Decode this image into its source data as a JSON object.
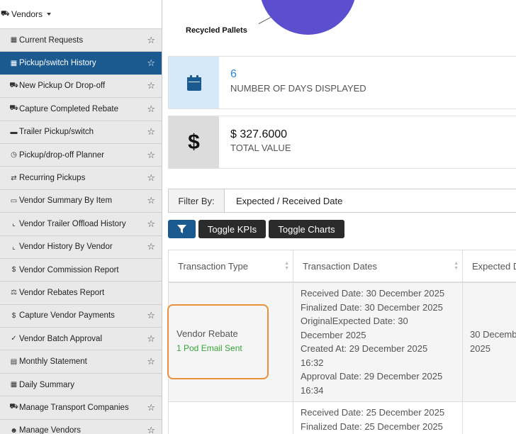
{
  "sidebar": {
    "top": {
      "icon": "truck-icon",
      "label": "Vendors"
    },
    "items": [
      {
        "label": "Current Requests",
        "icon": "table-icon",
        "glyph": "▦",
        "star": true
      },
      {
        "label": "Pickup/switch History",
        "icon": "table-icon",
        "glyph": "▦",
        "star": true,
        "active": true
      },
      {
        "label": "New Pickup Or Drop-off",
        "icon": "truck-loading-icon",
        "glyph": "⛟",
        "star": true
      },
      {
        "label": "Capture Completed Rebate",
        "icon": "dolly-icon",
        "glyph": "⛟",
        "star": true
      },
      {
        "label": "Trailer Pickup/switch",
        "icon": "trailer-icon",
        "glyph": "▬",
        "star": true
      },
      {
        "label": "Pickup/drop-off Planner",
        "icon": "clock-icon",
        "glyph": "◷",
        "star": true
      },
      {
        "label": "Recurring Pickups",
        "icon": "sync-icon",
        "glyph": "⇄",
        "star": true
      },
      {
        "label": "Vendor Summary By Item",
        "icon": "pallet-icon",
        "glyph": "▭",
        "star": true
      },
      {
        "label": "Vendor Trailer Offload History",
        "icon": "line-chart-icon",
        "glyph": "⌞",
        "star": true
      },
      {
        "label": "Vendor History By Vendor",
        "icon": "line-chart-icon",
        "glyph": "⌞",
        "star": true
      },
      {
        "label": "Vendor Commission Report",
        "icon": "dollar-icon",
        "glyph": "$",
        "star": false
      },
      {
        "label": "Vendor Rebates Report",
        "icon": "balance-scale-icon",
        "glyph": "⚖",
        "star": false
      },
      {
        "label": "Capture Vendor Payments",
        "icon": "dollar-icon",
        "glyph": "$",
        "star": true
      },
      {
        "label": "Vendor Batch Approval",
        "icon": "check-icon",
        "glyph": "✓",
        "star": true
      },
      {
        "label": "Monthly Statement",
        "icon": "list-alt-icon",
        "glyph": "▤",
        "star": true
      },
      {
        "label": "Daily Summary",
        "icon": "table-icon",
        "glyph": "▦",
        "star": false
      },
      {
        "label": "Manage Transport Companies",
        "icon": "truck-icon",
        "glyph": "⛟",
        "star": true
      },
      {
        "label": "Manage Vendors",
        "icon": "users-icon",
        "glyph": "☻",
        "star": true
      }
    ]
  },
  "pie": {
    "label": "Recycled Pallets",
    "color": "#5b4fcf"
  },
  "kpis": {
    "days": {
      "value": "6",
      "label": "NUMBER OF DAYS DISPLAYED",
      "icon": "calendar-icon"
    },
    "total": {
      "value": "$ 327.6000",
      "label": "TOTAL VALUE",
      "icon": "dollar-icon"
    }
  },
  "filter": {
    "label": "Filter By:",
    "value": "Expected / Received Date"
  },
  "buttons": {
    "filter_icon": "filter-icon",
    "toggle_kpis": "Toggle KPIs",
    "toggle_charts": "Toggle Charts"
  },
  "table": {
    "headers": [
      "Transaction Type",
      "Transaction Dates",
      "Expected D"
    ],
    "rows": [
      {
        "type": "Vendor Rebate",
        "status": "1 Pod Email Sent",
        "dates": [
          "Received Date: 30 December 2025",
          "Finalized Date: 30 December 2025",
          "OriginalExpected Date: 30",
          "December 2025",
          "Created At: 29 December 2025",
          "16:32",
          "Approval Date: 29 December 2025",
          "16:34"
        ],
        "expected": [
          "30 Decemb",
          "2025"
        ]
      },
      {
        "type": "",
        "status": "",
        "dates": [
          "Received Date: 25 December 2025",
          "Finalized Date: 25 December 2025"
        ],
        "expected": []
      }
    ]
  },
  "colors": {
    "active": "#1a5a91",
    "accent_blue": "#2a86d4",
    "success": "#3aa43a",
    "highlight": "#e8903a"
  }
}
